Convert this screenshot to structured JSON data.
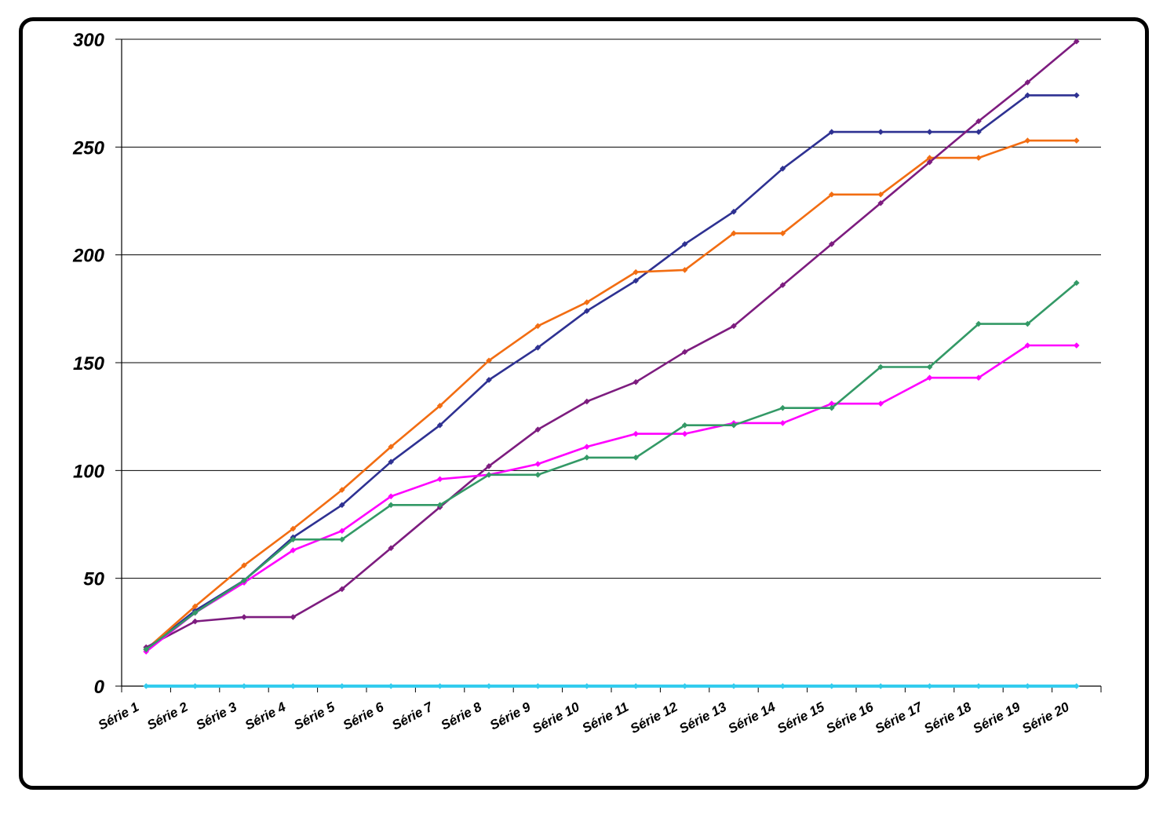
{
  "chart_data": {
    "type": "line",
    "title": "",
    "xlabel": "",
    "ylabel": "",
    "categories": [
      "Série 1",
      "Série 2",
      "Série 3",
      "Série 4",
      "Série 5",
      "Série 6",
      "Série 7",
      "Série 8",
      "Série 9",
      "Série 10",
      "Série 11",
      "Série 12",
      "Série 13",
      "Série 14",
      "Série 15",
      "Série 16",
      "Série 17",
      "Série 18",
      "Série 19",
      "Série 20"
    ],
    "ylim": [
      0,
      300
    ],
    "yticks": [
      0,
      50,
      100,
      150,
      200,
      250,
      300
    ],
    "grid": "horizontal",
    "legend": "none",
    "series": [
      {
        "color": "#2E3192",
        "values": [
          17,
          35,
          49,
          69,
          84,
          104,
          121,
          142,
          157,
          174,
          188,
          205,
          220,
          240,
          257,
          257,
          257,
          257,
          274,
          274
        ]
      },
      {
        "color": "#F26D12",
        "values": [
          17,
          37,
          56,
          73,
          91,
          111,
          130,
          151,
          167,
          178,
          192,
          193,
          210,
          210,
          228,
          228,
          245,
          245,
          253,
          253
        ]
      },
      {
        "color": "#7D1C7F",
        "values": [
          18,
          30,
          32,
          32,
          45,
          64,
          83,
          102,
          119,
          132,
          141,
          155,
          167,
          186,
          205,
          224,
          243,
          262,
          280,
          299
        ]
      },
      {
        "color": "#FF00FF",
        "values": [
          16,
          34,
          48,
          63,
          72,
          88,
          96,
          98,
          103,
          111,
          117,
          117,
          122,
          122,
          131,
          131,
          143,
          143,
          158,
          158
        ]
      },
      {
        "color": "#339966",
        "values": [
          17,
          34,
          49,
          68,
          68,
          84,
          84,
          98,
          98,
          106,
          106,
          121,
          121,
          129,
          129,
          148,
          148,
          168,
          168,
          187
        ]
      },
      {
        "color": "#33CCEE",
        "values": [
          0,
          0,
          0,
          0,
          0,
          0,
          0,
          0,
          0,
          0,
          0,
          0,
          0,
          0,
          0,
          0,
          0,
          0,
          0,
          0
        ]
      }
    ]
  }
}
